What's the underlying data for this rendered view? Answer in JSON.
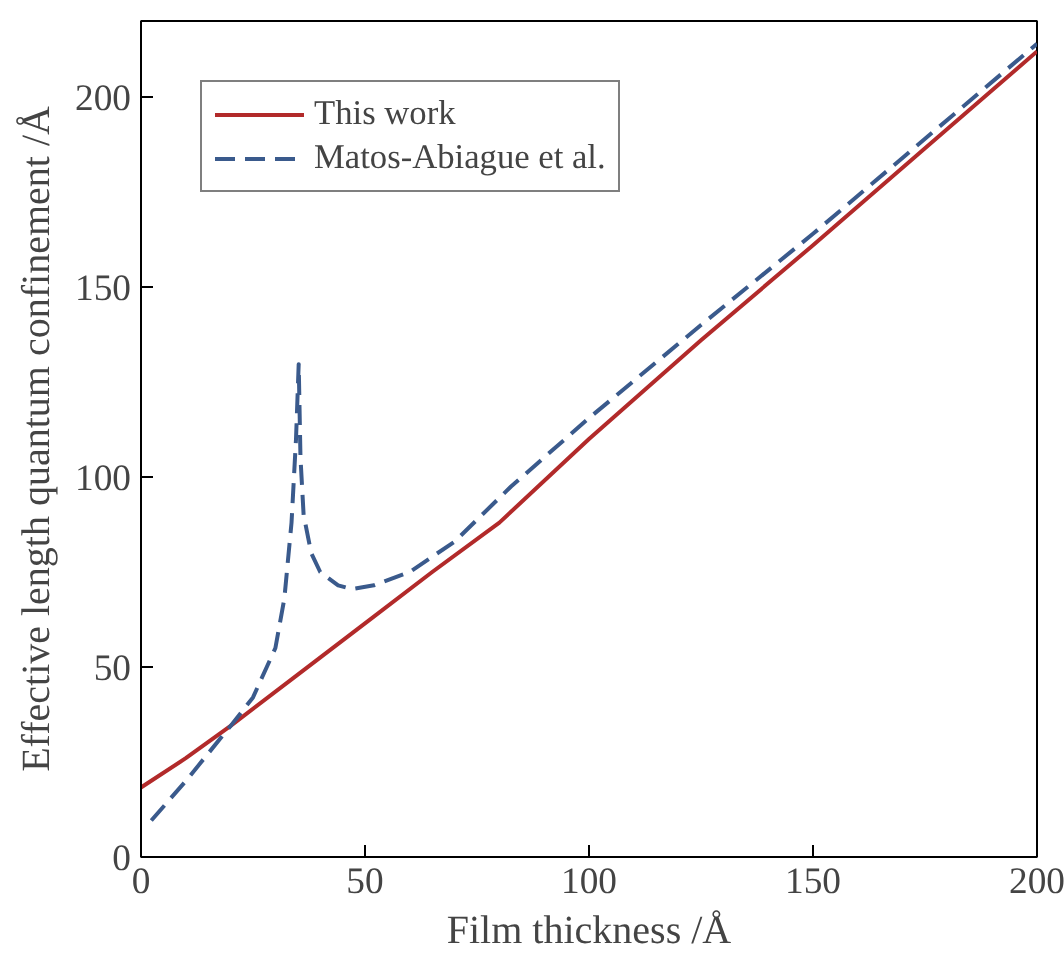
{
  "chart_data": {
    "type": "line",
    "xlabel": "Film thickness /Å",
    "ylabel": "Effective length quantum confinement /Å",
    "xlim": [
      0,
      200
    ],
    "ylim": [
      0,
      220
    ],
    "xticks": [
      0,
      50,
      100,
      150,
      200
    ],
    "yticks": [
      0,
      50,
      100,
      150,
      200
    ],
    "grid": false,
    "legend": "top left",
    "series": [
      {
        "name": "This work",
        "color": "#b22a2a",
        "line_style": "solid",
        "x": [
          0,
          10,
          20,
          35,
          50,
          65,
          80,
          100,
          125,
          150,
          175,
          200
        ],
        "values": [
          18.3,
          26,
          34.5,
          48,
          61.5,
          75,
          88,
          110,
          136,
          161,
          186.5,
          212
        ]
      },
      {
        "name": "Matos-Abiague et al.",
        "color": "#3a5a8c",
        "line_style": "dashed",
        "x": [
          2.3,
          10,
          20,
          25,
          30,
          32,
          33.6,
          34.6,
          35.2,
          35.6,
          36.3,
          38,
          40,
          44,
          47,
          52,
          60,
          70,
          82.6,
          100,
          125,
          150,
          175,
          200
        ],
        "values": [
          9.6,
          20,
          34.5,
          42,
          55,
          68,
          88,
          110,
          129.7,
          105,
          90,
          80,
          75,
          71.5,
          70.5,
          71.5,
          75,
          83,
          97.5,
          115.5,
          140,
          164,
          189,
          214
        ]
      }
    ]
  }
}
